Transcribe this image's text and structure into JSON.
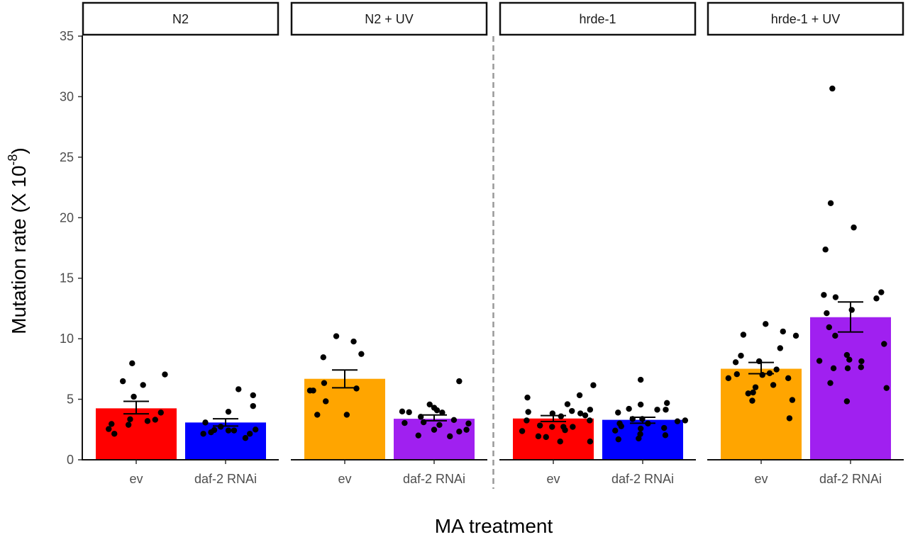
{
  "chart_data": {
    "type": "bar",
    "title": "",
    "xlabel": "MA treatment",
    "ylabel": "Mutation rate (X 10",
    "ylabel_superscript": "-8",
    "ylabel_suffix": ")",
    "ylim": [
      0,
      35
    ],
    "yticks": [
      0,
      5,
      10,
      15,
      20,
      25,
      30,
      35
    ],
    "grid": false,
    "legend": "none",
    "categories": [
      "ev",
      "daf-2 RNAi"
    ],
    "separator_after_panel": 2,
    "panels": [
      {
        "label": "N2",
        "bars": [
          {
            "category": "ev",
            "mean": 4.25,
            "se_low": 3.8,
            "se_high": 4.83,
            "color": "#ff0000",
            "points": [
              7.97,
              6.49,
              6.18,
              7.05,
              5.21,
              3.9,
              3.35,
              3.31,
              3.2,
              2.89,
              2.96,
              2.54,
              2.15
            ],
            "jitter": [
              -0.1,
              -0.33,
              0.17,
              0.71,
              -0.06,
              0.61,
              -0.15,
              0.47,
              0.28,
              -0.19,
              -0.61,
              -0.68,
              -0.54
            ]
          },
          {
            "category": "daf-2 RNAi",
            "mean": 3.08,
            "se_low": 2.79,
            "se_high": 3.39,
            "color": "#0000ff",
            "points": [
              5.83,
              5.33,
              4.44,
              3.97,
              3.08,
              2.73,
              2.46,
              2.15,
              2.27,
              2.42,
              2.42,
              2.5,
              2.15,
              1.8
            ],
            "jitter": [
              0.32,
              0.68,
              0.68,
              0.07,
              -0.5,
              -0.12,
              -0.28,
              -0.55,
              -0.36,
              0.07,
              0.21,
              0.74,
              0.6,
              0.49
            ]
          }
        ]
      },
      {
        "label": "N2 + UV",
        "bars": [
          {
            "category": "ev",
            "mean": 6.69,
            "se_low": 5.95,
            "se_high": 7.42,
            "color": "#ffa500",
            "points": [
              10.21,
              9.77,
              8.74,
              8.47,
              6.34,
              5.89,
              5.72,
              5.72,
              4.83,
              3.72,
              3.72
            ],
            "jitter": [
              -0.21,
              0.22,
              0.41,
              -0.53,
              -0.51,
              0.29,
              -0.86,
              -0.78,
              -0.47,
              -0.68,
              0.05
            ]
          },
          {
            "category": "daf-2 RNAi",
            "mean": 3.39,
            "se_low": 3.23,
            "se_high": 3.7,
            "color": "#a020f0",
            "points": [
              6.49,
              4.57,
              4.3,
              4.09,
              3.99,
              3.93,
              3.9,
              3.55,
              3.29,
              3.04,
              3.1,
              2.88,
              3.0,
              2.48,
              2.48,
              2.33,
              2.01,
              1.94
            ],
            "jitter": [
              0.62,
              -0.11,
              0.0,
              0.07,
              -0.79,
              -0.62,
              0.2,
              -0.33,
              0.49,
              -0.73,
              -0.26,
              0.13,
              0.85,
              0.0,
              0.8,
              0.62,
              -0.39,
              0.39
            ]
          }
        ]
      },
      {
        "label": "hrde-1",
        "bars": [
          {
            "category": "ev",
            "mean": 3.41,
            "se_low": 3.16,
            "se_high": 3.65,
            "color": "#ff0000",
            "points": [
              6.16,
              5.14,
              5.33,
              4.59,
              3.95,
              4.03,
              3.83,
              3.83,
              4.14,
              3.67,
              3.59,
              3.25,
              3.25,
              2.72,
              2.83,
              2.72,
              2.72,
              2.45,
              2.37,
              1.94,
              1.88,
              1.51,
              1.51
            ],
            "jitter": [
              0.99,
              -0.64,
              0.65,
              0.35,
              -0.62,
              0.46,
              -0.02,
              0.67,
              0.91,
              0.79,
              0.19,
              -0.66,
              0.9,
              -0.03,
              -0.33,
              0.25,
              0.48,
              0.29,
              -0.77,
              -0.37,
              -0.18,
              0.17,
              0.91
            ]
          },
          {
            "category": "daf-2 RNAi",
            "mean": 3.3,
            "se_low": 3.02,
            "se_high": 3.51,
            "color": "#0000ff",
            "points": [
              6.61,
              4.69,
              4.56,
              4.21,
              4.14,
              4.14,
              3.9,
              3.37,
              3.37,
              3.18,
              3.25,
              3.0,
              3.0,
              2.77,
              2.63,
              2.58,
              2.41,
              2.12,
              2.03,
              1.69,
              1.76
            ],
            "jitter": [
              -0.05,
              0.6,
              -0.05,
              -0.34,
              0.36,
              0.57,
              -0.61,
              -0.25,
              -0.01,
              0.86,
              1.05,
              -0.57,
              0.13,
              -0.53,
              0.53,
              -0.05,
              -0.68,
              -0.06,
              0.56,
              -0.6,
              -0.1
            ]
          }
        ]
      },
      {
        "label": "hrde-1 + UV",
        "bars": [
          {
            "category": "ev",
            "mean": 7.52,
            "se_low": 7.11,
            "se_high": 8.04,
            "color": "#ffa500",
            "points": [
              11.22,
              10.6,
              10.33,
              10.25,
              9.22,
              8.6,
              8.06,
              8.14,
              7.46,
              7.07,
              7.15,
              7.01,
              6.74,
              6.74,
              6.18,
              5.99,
              5.56,
              5.48,
              4.88,
              4.94,
              3.43
            ],
            "jitter": [
              0.11,
              0.54,
              -0.44,
              0.86,
              0.47,
              -0.5,
              -0.63,
              -0.05,
              0.38,
              -0.6,
              0.21,
              0.03,
              -0.81,
              0.67,
              0.3,
              -0.14,
              -0.2,
              -0.32,
              -0.22,
              0.77,
              0.7
            ]
          },
          {
            "category": "daf-2 RNAi",
            "mean": 11.78,
            "se_low": 10.56,
            "se_high": 13.04,
            "color": "#a020f0",
            "points": [
              30.67,
              21.2,
              19.19,
              17.37,
              13.62,
              13.43,
              13.84,
              13.33,
              12.38,
              12.11,
              10.95,
              10.25,
              9.57,
              8.66,
              8.27,
              8.17,
              8.14,
              7.65,
              7.56,
              7.56,
              6.34,
              5.93,
              4.83
            ],
            "jitter": [
              -0.45,
              -0.49,
              0.08,
              -0.62,
              -0.66,
              -0.37,
              0.76,
              0.64,
              0.03,
              -0.59,
              -0.53,
              -0.38,
              0.83,
              -0.09,
              -0.03,
              -0.77,
              0.27,
              0.26,
              -0.42,
              -0.07,
              -0.5,
              0.89,
              -0.09
            ]
          }
        ]
      }
    ]
  }
}
